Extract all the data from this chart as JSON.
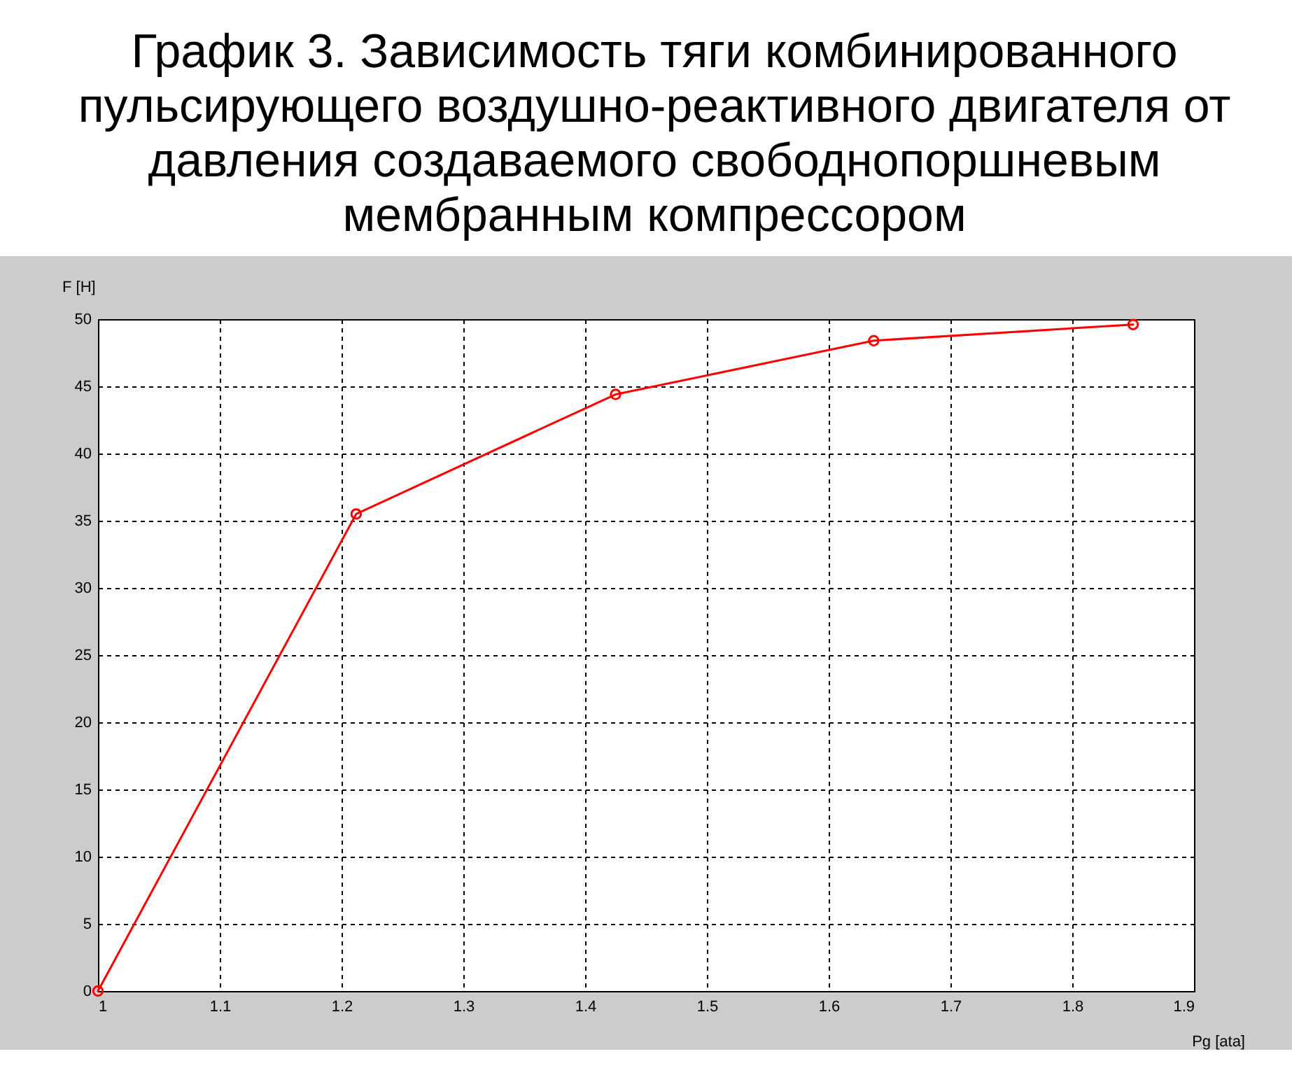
{
  "chart_data": {
    "type": "line",
    "title": "График 3. Зависимость тяги комбинированного пульсирующего воздушно-реактивного двигателя от давления создаваемого свободнопоршневым мембранным компрессором",
    "xlabel": "Pg [ata]",
    "ylabel": "F [H]",
    "x": [
      1,
      1.212,
      1.425,
      1.637,
      1.85
    ],
    "series": [
      {
        "color": "#ff0000",
        "values": [
          0,
          35.5,
          44.4,
          48.4,
          49.6
        ]
      }
    ],
    "xlim": [
      1,
      1.9
    ],
    "ylim": [
      0,
      50
    ],
    "xticks": [
      1,
      1.1,
      1.2,
      1.3,
      1.4,
      1.5,
      1.6,
      1.7,
      1.8,
      1.9
    ],
    "yticks": [
      0,
      5,
      10,
      15,
      20,
      25,
      30,
      35,
      40,
      45,
      50
    ],
    "grid": true,
    "marker": "circle",
    "line_style": "solid"
  }
}
